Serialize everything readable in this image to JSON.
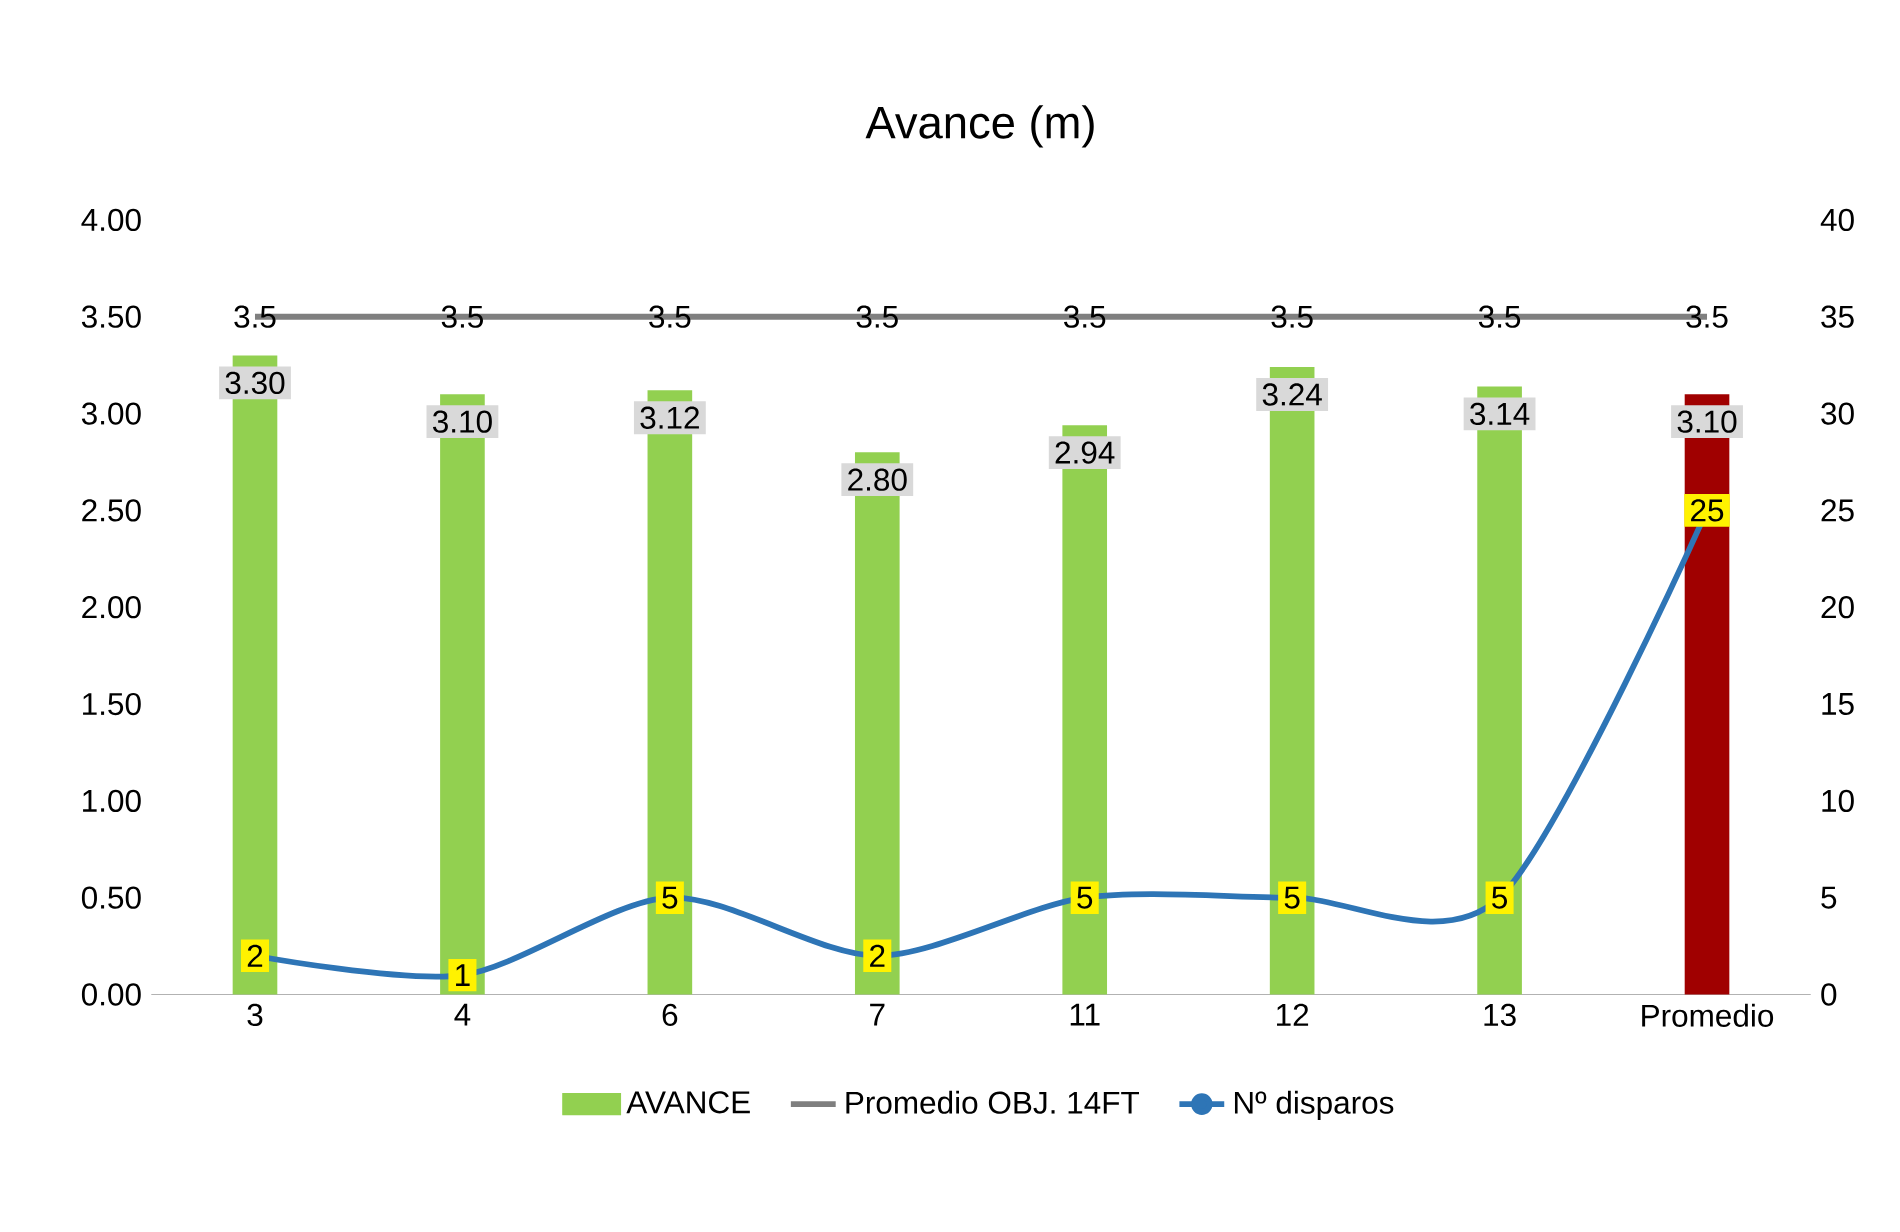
{
  "chart_data": {
    "type": "bar",
    "title": "Avance (m)",
    "categories": [
      "3",
      "4",
      "6",
      "7",
      "11",
      "12",
      "13",
      "Promedio"
    ],
    "ylim": [
      0,
      4
    ],
    "yticks": [
      {
        "value": 0,
        "label": "0.00"
      },
      {
        "value": 0.5,
        "label": "0.50"
      },
      {
        "value": 1,
        "label": "1.00"
      },
      {
        "value": 1.5,
        "label": "1.50"
      },
      {
        "value": 2,
        "label": "2.00"
      },
      {
        "value": 2.5,
        "label": "2.50"
      },
      {
        "value": 3,
        "label": "3.00"
      },
      {
        "value": 3.5,
        "label": "3.50"
      },
      {
        "value": 4,
        "label": "4.00"
      }
    ],
    "y2lim": [
      0,
      40
    ],
    "y2ticks": [
      0,
      5,
      10,
      15,
      20,
      25,
      30,
      35,
      40
    ],
    "legend": "bottom",
    "series": [
      {
        "name": "AVANCE",
        "colors": [
          "#92d050",
          "#92d050",
          "#92d050",
          "#92d050",
          "#92d050",
          "#92d050",
          "#92d050",
          "#a00000"
        ],
        "values": [
          3.3,
          3.1,
          3.12,
          2.8,
          2.94,
          3.24,
          3.14,
          3.1
        ],
        "value_labels": [
          "3.30",
          "3.10",
          "3.12",
          "2.80",
          "2.94",
          "3.24",
          "3.14",
          "3.10"
        ]
      },
      {
        "name": "Promedio OBJ. 14FT",
        "type": "line",
        "color": "#7f7f7f",
        "line_style": "solid",
        "values": [
          3.5,
          3.5,
          3.5,
          3.5,
          3.5,
          3.5,
          3.5,
          3.5
        ],
        "value_labels": [
          "3.5",
          "3.5",
          "3.5",
          "3.5",
          "3.5",
          "3.5",
          "3.5",
          "3.5"
        ]
      },
      {
        "name": "Nº disparos",
        "type": "line",
        "axis": "y2",
        "color": "#2e75b6",
        "line_style": "solid",
        "marker": "circle",
        "values": [
          2,
          1,
          5,
          2,
          5,
          5,
          5,
          25
        ],
        "value_labels": [
          "2",
          "1",
          "5",
          "2",
          "5",
          "5",
          "5",
          "25"
        ]
      }
    ]
  }
}
